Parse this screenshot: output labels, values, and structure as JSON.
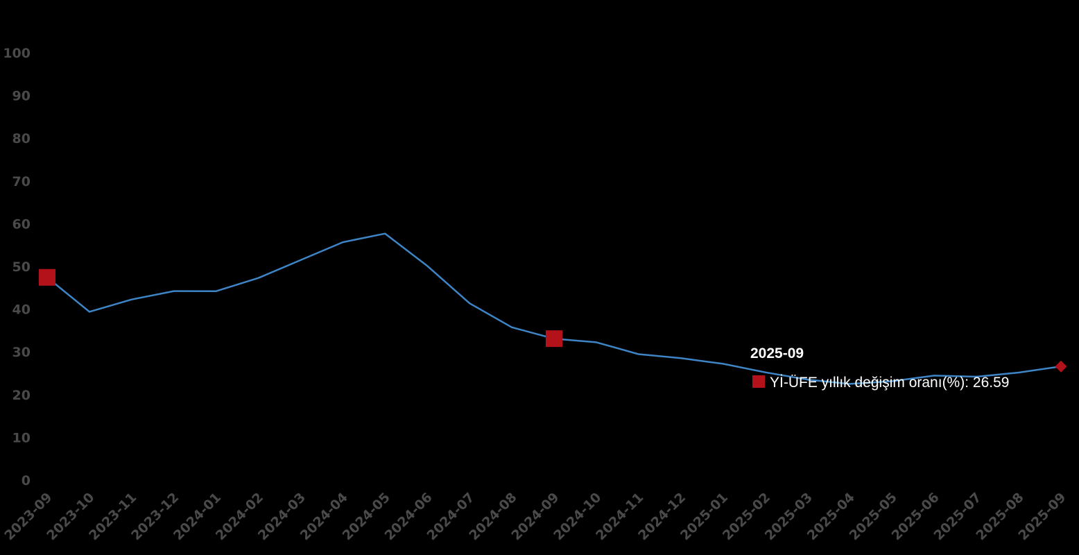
{
  "chart_data": {
    "type": "line",
    "x": [
      "2023-09",
      "2023-10",
      "2023-11",
      "2023-12",
      "2024-01",
      "2024-02",
      "2024-03",
      "2024-04",
      "2024-05",
      "2024-06",
      "2024-07",
      "2024-08",
      "2024-09",
      "2024-10",
      "2024-11",
      "2024-12",
      "2025-01",
      "2025-02",
      "2025-03",
      "2025-04",
      "2025-05",
      "2025-06",
      "2025-07",
      "2025-08",
      "2025-09"
    ],
    "series": [
      {
        "name": "Yİ-ÜFE yıllık değişim oranı(%)",
        "color": "#3d85c6",
        "values": [
          47.44,
          39.39,
          42.25,
          44.22,
          44.2,
          47.29,
          51.47,
          55.66,
          57.68,
          50.09,
          41.37,
          35.75,
          33.09,
          32.24,
          29.47,
          28.52,
          27.2,
          25.21,
          23.5,
          22.5,
          23.13,
          24.45,
          24.19,
          25.16,
          26.59
        ],
        "marker_color": "#b3121a",
        "marked_points": [
          "2023-09",
          "2024-09",
          "2025-09"
        ]
      }
    ],
    "ylim": [
      0,
      100
    ],
    "yticks": [
      0,
      10,
      20,
      30,
      40,
      50,
      60,
      70,
      80,
      90,
      100
    ],
    "grid": false,
    "background": "#000000",
    "tooltip": {
      "title": "2025-09",
      "label": "Yİ-ÜFE yıllık değişim oranı(%): 26.59"
    }
  }
}
